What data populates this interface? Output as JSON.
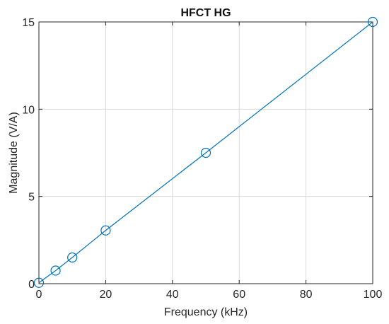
{
  "chart_data": {
    "type": "line",
    "title": "HFCT HG",
    "xlabel": "Frequency (kHz)",
    "ylabel": "Magnitude (V/A)",
    "xlim": [
      0,
      100
    ],
    "ylim": [
      0,
      15
    ],
    "xticks": [
      0,
      20,
      40,
      60,
      80,
      100
    ],
    "yticks": [
      0,
      5,
      10,
      15
    ],
    "grid": true,
    "series": [
      {
        "x": [
          0,
          5,
          10,
          20,
          50,
          100
        ],
        "y": [
          0.05,
          0.75,
          1.5,
          3.05,
          7.5,
          15.0
        ],
        "marker": "circle",
        "color": "#0072bd"
      }
    ]
  }
}
